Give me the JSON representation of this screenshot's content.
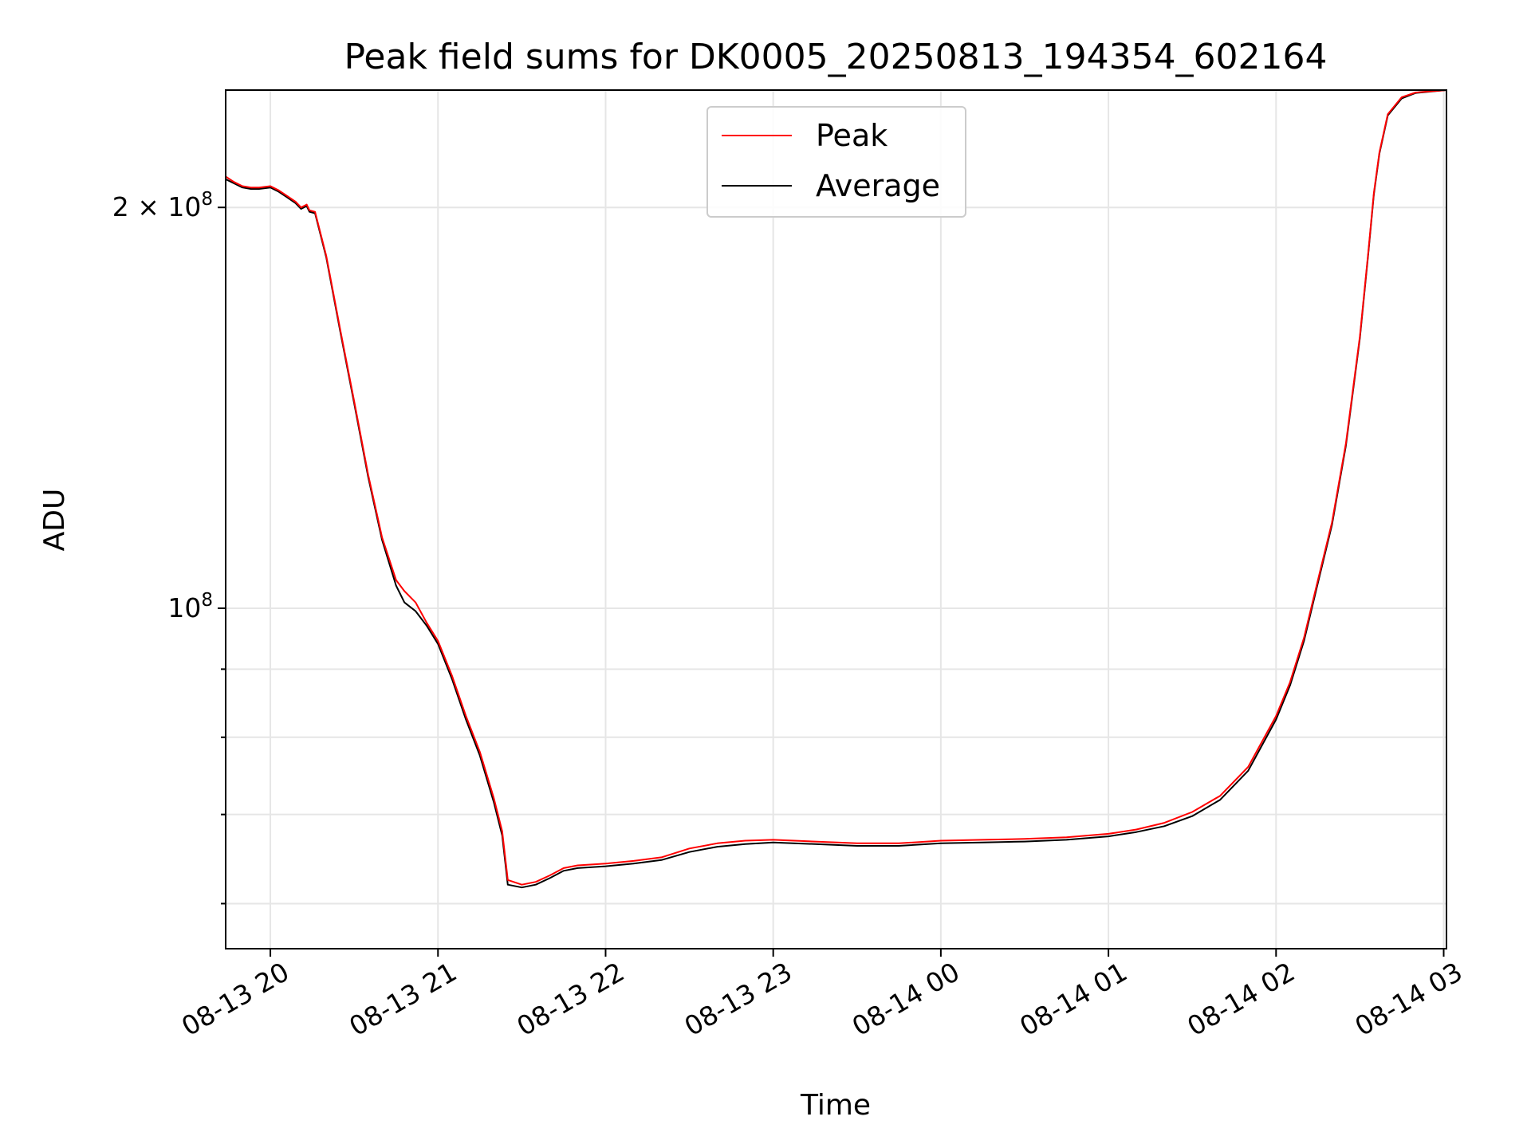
{
  "chart_data": {
    "type": "line",
    "title": "Peak field sums for DK0005_20250813_194354_602164",
    "xlabel": "Time",
    "ylabel": "ADU",
    "y_scale": "log",
    "ylim": [
      55500000,
      245000000
    ],
    "xlim": [
      "2025-08-13 19:44",
      "2025-08-14 03:01"
    ],
    "grid": true,
    "legend_position": "upper center",
    "x_tick_labels": [
      "08-13 20",
      "08-13 21",
      "08-13 22",
      "08-13 23",
      "08-14 00",
      "08-14 01",
      "08-14 02",
      "08-14 03"
    ],
    "x_tick_values": [
      "2025-08-13 20:00",
      "2025-08-13 21:00",
      "2025-08-13 22:00",
      "2025-08-13 23:00",
      "2025-08-14 00:00",
      "2025-08-14 01:00",
      "2025-08-14 02:00",
      "2025-08-14 03:00"
    ],
    "y_tick_labels": [
      {
        "label": "2 × 10",
        "exponent": "8",
        "value": 200000000
      },
      {
        "label": "10",
        "exponent": "8",
        "value": 100000000
      }
    ],
    "y_minor_ticks": [
      60000000,
      70000000,
      80000000,
      90000000
    ],
    "series": [
      {
        "name": "Peak",
        "color": "#ff0000",
        "x": [
          "2025-08-13 19:44",
          "2025-08-13 19:47",
          "2025-08-13 19:50",
          "2025-08-13 19:53",
          "2025-08-13 19:56",
          "2025-08-13 20:00",
          "2025-08-13 20:03",
          "2025-08-13 20:06",
          "2025-08-13 20:09",
          "2025-08-13 20:11",
          "2025-08-13 20:13",
          "2025-08-13 20:14",
          "2025-08-13 20:16",
          "2025-08-13 20:20",
          "2025-08-13 20:25",
          "2025-08-13 20:30",
          "2025-08-13 20:35",
          "2025-08-13 20:40",
          "2025-08-13 20:45",
          "2025-08-13 20:48",
          "2025-08-13 20:52",
          "2025-08-13 20:56",
          "2025-08-13 21:00",
          "2025-08-13 21:05",
          "2025-08-13 21:10",
          "2025-08-13 21:15",
          "2025-08-13 21:20",
          "2025-08-13 21:23",
          "2025-08-13 21:25",
          "2025-08-13 21:30",
          "2025-08-13 21:35",
          "2025-08-13 21:40",
          "2025-08-13 21:45",
          "2025-08-13 21:50",
          "2025-08-13 22:00",
          "2025-08-13 22:10",
          "2025-08-13 22:20",
          "2025-08-13 22:30",
          "2025-08-13 22:40",
          "2025-08-13 22:50",
          "2025-08-13 23:00",
          "2025-08-13 23:15",
          "2025-08-13 23:30",
          "2025-08-13 23:45",
          "2025-08-14 00:00",
          "2025-08-14 00:15",
          "2025-08-14 00:30",
          "2025-08-14 00:45",
          "2025-08-14 01:00",
          "2025-08-14 01:10",
          "2025-08-14 01:20",
          "2025-08-14 01:30",
          "2025-08-14 01:40",
          "2025-08-14 01:50",
          "2025-08-14 02:00",
          "2025-08-14 02:05",
          "2025-08-14 02:10",
          "2025-08-14 02:15",
          "2025-08-14 02:20",
          "2025-08-14 02:25",
          "2025-08-14 02:30",
          "2025-08-14 02:33",
          "2025-08-14 02:35",
          "2025-08-14 02:37",
          "2025-08-14 02:40",
          "2025-08-14 02:45",
          "2025-08-14 02:50",
          "2025-08-14 03:01"
        ],
        "y": [
          211000000,
          209000000,
          207500000,
          207000000,
          207000000,
          207500000,
          206000000,
          204000000,
          202000000,
          200000000,
          201000000,
          199000000,
          198500000,
          184000000,
          162000000,
          143000000,
          126000000,
          113000000,
          105000000,
          103000000,
          101000000,
          97500000,
          94500000,
          89000000,
          83000000,
          78000000,
          72000000,
          68000000,
          62500000,
          62000000,
          62300000,
          63000000,
          63800000,
          64100000,
          64300000,
          64600000,
          65000000,
          66000000,
          66600000,
          66900000,
          67000000,
          66800000,
          66600000,
          66600000,
          66900000,
          67000000,
          67100000,
          67300000,
          67700000,
          68200000,
          69000000,
          70300000,
          72300000,
          76000000,
          83000000,
          88000000,
          95000000,
          105000000,
          116000000,
          133000000,
          160000000,
          185000000,
          205000000,
          220000000,
          235000000,
          242000000,
          244000000,
          245000000
        ]
      },
      {
        "name": "Average",
        "color": "#000000",
        "x": [
          "2025-08-13 19:44",
          "2025-08-13 19:47",
          "2025-08-13 19:50",
          "2025-08-13 19:53",
          "2025-08-13 19:56",
          "2025-08-13 20:00",
          "2025-08-13 20:03",
          "2025-08-13 20:06",
          "2025-08-13 20:09",
          "2025-08-13 20:11",
          "2025-08-13 20:13",
          "2025-08-13 20:14",
          "2025-08-13 20:16",
          "2025-08-13 20:20",
          "2025-08-13 20:25",
          "2025-08-13 20:30",
          "2025-08-13 20:35",
          "2025-08-13 20:40",
          "2025-08-13 20:45",
          "2025-08-13 20:48",
          "2025-08-13 20:52",
          "2025-08-13 20:56",
          "2025-08-13 21:00",
          "2025-08-13 21:05",
          "2025-08-13 21:10",
          "2025-08-13 21:15",
          "2025-08-13 21:20",
          "2025-08-13 21:23",
          "2025-08-13 21:25",
          "2025-08-13 21:30",
          "2025-08-13 21:35",
          "2025-08-13 21:40",
          "2025-08-13 21:45",
          "2025-08-13 21:50",
          "2025-08-13 22:00",
          "2025-08-13 22:10",
          "2025-08-13 22:20",
          "2025-08-13 22:30",
          "2025-08-13 22:40",
          "2025-08-13 22:50",
          "2025-08-13 23:00",
          "2025-08-13 23:15",
          "2025-08-13 23:30",
          "2025-08-13 23:45",
          "2025-08-14 00:00",
          "2025-08-14 00:15",
          "2025-08-14 00:30",
          "2025-08-14 00:45",
          "2025-08-14 01:00",
          "2025-08-14 01:10",
          "2025-08-14 01:20",
          "2025-08-14 01:30",
          "2025-08-14 01:40",
          "2025-08-14 01:50",
          "2025-08-14 02:00",
          "2025-08-14 02:05",
          "2025-08-14 02:10",
          "2025-08-14 02:15",
          "2025-08-14 02:20",
          "2025-08-14 02:25",
          "2025-08-14 02:30",
          "2025-08-14 02:33",
          "2025-08-14 02:35",
          "2025-08-14 02:37",
          "2025-08-14 02:40",
          "2025-08-14 02:45",
          "2025-08-14 02:50",
          "2025-08-14 03:01"
        ],
        "y": [
          210000000,
          208500000,
          207000000,
          206500000,
          206500000,
          207000000,
          205500000,
          203500000,
          201500000,
          199500000,
          200500000,
          198500000,
          198000000,
          183500000,
          161500000,
          142500000,
          125500000,
          112500000,
          104000000,
          101000000,
          99500000,
          97000000,
          94000000,
          88500000,
          82500000,
          77500000,
          71500000,
          67500000,
          62000000,
          61700000,
          62000000,
          62700000,
          63500000,
          63800000,
          64000000,
          64300000,
          64700000,
          65600000,
          66200000,
          66500000,
          66700000,
          66500000,
          66300000,
          66300000,
          66600000,
          66700000,
          66800000,
          67000000,
          67400000,
          67900000,
          68600000,
          69800000,
          71800000,
          75500000,
          82500000,
          87500000,
          94500000,
          104500000,
          115500000,
          132500000,
          159500000,
          184500000,
          204500000,
          219500000,
          234500000,
          241500000,
          243800000,
          245000000
        ]
      }
    ]
  }
}
